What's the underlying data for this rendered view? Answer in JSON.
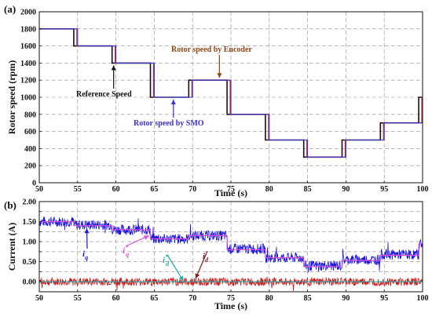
{
  "chart_data": [
    {
      "panel_label": "(a)",
      "type": "line",
      "xlabel": "Time (s)",
      "ylabel": "Rotor speed (rpm)",
      "xlim": [
        50,
        100
      ],
      "ylim": [
        0,
        2000
      ],
      "xticks": [
        50,
        55,
        60,
        65,
        70,
        75,
        80,
        85,
        90,
        95,
        100
      ],
      "yticks": [
        0,
        200,
        400,
        600,
        800,
        1000,
        1200,
        1400,
        1600,
        1800,
        2000
      ],
      "grid": true,
      "series": [
        {
          "name": "Reference Speed",
          "color": "#111111",
          "step": true,
          "x": [
            50,
            54.5,
            59.5,
            64.5,
            69.5,
            74.5,
            79.5,
            84.5,
            89.5,
            94.5,
            99.5,
            100
          ],
          "y": [
            1800,
            1600,
            1400,
            1000,
            1200,
            800,
            500,
            300,
            500,
            700,
            1000,
            1000
          ]
        },
        {
          "name": "Rotor speed by Encoder",
          "color": "#c8202b",
          "step": true,
          "lag": 0.4,
          "x": [
            50,
            54.5,
            59.5,
            64.5,
            69.5,
            74.5,
            79.5,
            84.5,
            89.5,
            94.5,
            99.5,
            100
          ],
          "y": [
            1800,
            1600,
            1400,
            1000,
            1200,
            800,
            500,
            300,
            500,
            700,
            1000,
            1000
          ]
        },
        {
          "name": "Rotor speed by SMO",
          "color": "#3b2fd6",
          "step": true,
          "lag": 0.5,
          "x": [
            50,
            54.5,
            59.5,
            64.5,
            69.5,
            74.5,
            79.5,
            84.5,
            89.5,
            94.5,
            99.5,
            100
          ],
          "y": [
            1800,
            1600,
            1400,
            1000,
            1200,
            800,
            500,
            300,
            500,
            700,
            1000,
            1000
          ]
        }
      ],
      "annotations": [
        {
          "text": "Rotor speed by Encoder",
          "color": "#8b4513",
          "target": [
            73.5,
            1200
          ]
        },
        {
          "text": "Reference Speed",
          "color": "#111111",
          "target": [
            59.7,
            1400
          ]
        },
        {
          "text": "Rotor speed by SMO",
          "color": "#3b2fd6",
          "target": [
            67.5,
            1000
          ]
        }
      ]
    },
    {
      "panel_label": "(b)",
      "type": "line",
      "xlabel": "Time (s)",
      "ylabel": "Current (A)",
      "xlim": [
        50,
        100
      ],
      "ylim": [
        -0.25,
        2.0
      ],
      "xticks": [
        50,
        55,
        60,
        65,
        70,
        75,
        80,
        85,
        90,
        95,
        100
      ],
      "yticks": [
        -0.25,
        0.0,
        0.25,
        0.5,
        0.75,
        1.0,
        1.25,
        1.5,
        1.75,
        2.0
      ],
      "ytick_labels": [
        "",
        "0.00",
        "",
        "0.50",
        "",
        "1.00",
        "",
        "1.50",
        "",
        "2.00"
      ],
      "grid": true,
      "series": [
        {
          "name": "iq",
          "color": "#1a16e0",
          "band": 0.13,
          "x": [
            50,
            54.5,
            59.5,
            64.5,
            69.5,
            74.5,
            79.5,
            84.5,
            89.5,
            94.5,
            99.5,
            100
          ],
          "y": [
            1.5,
            1.42,
            1.3,
            1.07,
            1.15,
            0.82,
            0.6,
            0.4,
            0.55,
            0.68,
            0.95,
            0.95
          ]
        },
        {
          "name": "iq*",
          "color": "#d84fd8",
          "x": [
            50,
            54.5,
            59.5,
            64.5,
            69.5,
            74.5,
            79.5,
            84.5,
            89.5,
            94.5,
            99.5,
            100
          ],
          "y": [
            1.5,
            1.4,
            1.3,
            1.07,
            1.15,
            0.8,
            0.6,
            0.38,
            0.53,
            0.66,
            0.95,
            0.95
          ]
        },
        {
          "name": "id",
          "color": "#d01818",
          "band": 0.1,
          "x": [
            50,
            100
          ],
          "y": [
            0.0,
            0.0
          ]
        },
        {
          "name": "id*",
          "color": "#22a9a9",
          "x": [
            50,
            100
          ],
          "y": [
            0.0,
            0.0
          ]
        }
      ],
      "annotations": [
        {
          "base": "i",
          "sub": "q",
          "sup": "",
          "color": "#1a16e0",
          "target": [
            56.2,
            1.33
          ]
        },
        {
          "base": "i",
          "sub": "q",
          "sup": "*",
          "color": "#d84fd8",
          "target": [
            64.3,
            1.15
          ]
        },
        {
          "base": "i",
          "sub": "d",
          "sup": "*",
          "color": "#22a9a9",
          "target": [
            68.8,
            0.02
          ]
        },
        {
          "base": "i",
          "sub": "d",
          "sup": "",
          "color": "#8b1a1a",
          "target": [
            70.4,
            0.08
          ]
        }
      ]
    }
  ]
}
